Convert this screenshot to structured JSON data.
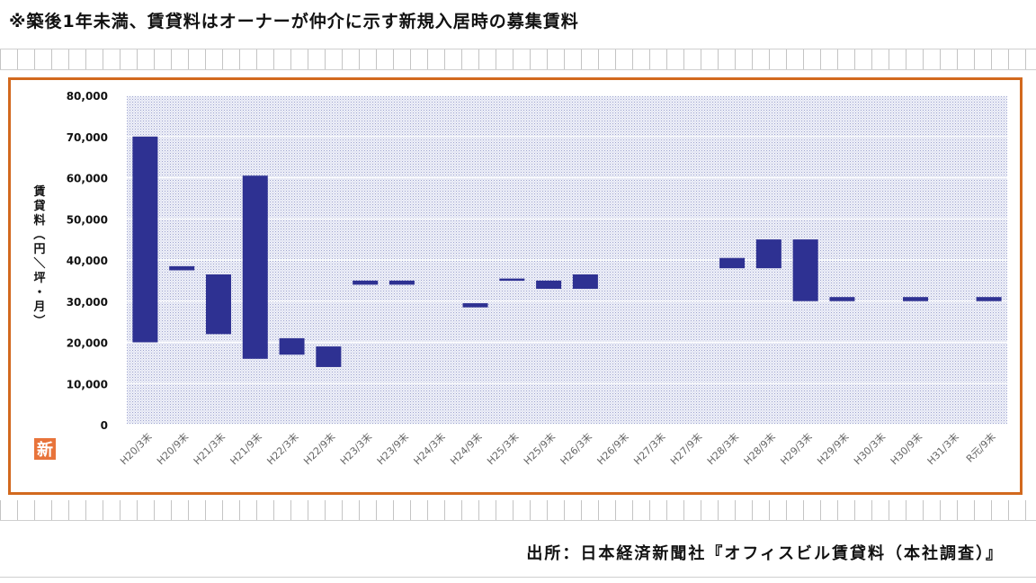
{
  "note": "※築後1年未満、賃貸料はオーナーが仲介に示す新規入居時の募集賃料",
  "source": "出所：日本経済新聞社『オフィスビル賃貸料（本社調査）』",
  "logo_text": "新",
  "colors": {
    "bar": "#2e3192",
    "frame": "#d2691e",
    "plot_dots": "#b4b8d8",
    "logo": "#e8743b"
  },
  "chart_data": {
    "type": "bar",
    "subtype": "floating-range",
    "ylabel": "賃貸料（円／坪・月）",
    "ylim": [
      0,
      80000
    ],
    "yticks": [
      "0",
      "10,000",
      "20,000",
      "30,000",
      "40,000",
      "50,000",
      "60,000",
      "70,000",
      "80,000"
    ],
    "ytick_values": [
      0,
      10000,
      20000,
      30000,
      40000,
      50000,
      60000,
      70000,
      80000
    ],
    "grid": true,
    "categories": [
      "H20/3末",
      "H20/9末",
      "H21/3末",
      "H21/9末",
      "H22/3末",
      "H22/9末",
      "H23/3末",
      "H23/9末",
      "H24/3末",
      "H24/9末",
      "H25/3末",
      "H25/9末",
      "H26/3末",
      "H26/9末",
      "H27/3末",
      "H27/9末",
      "H28/3末",
      "H28/9末",
      "H29/3末",
      "H29/9末",
      "H30/3末",
      "H30/9末",
      "H31/3末",
      "R元/9末"
    ],
    "ranges": [
      [
        20000,
        70000
      ],
      [
        37500,
        38500
      ],
      [
        22000,
        36500
      ],
      [
        16000,
        60500
      ],
      [
        17000,
        21000
      ],
      [
        14000,
        19000
      ],
      [
        34000,
        35000
      ],
      [
        34000,
        35000
      ],
      null,
      [
        28500,
        29500
      ],
      [
        35000,
        35500
      ],
      [
        33000,
        35000
      ],
      [
        33000,
        36500
      ],
      null,
      null,
      null,
      [
        38000,
        40500
      ],
      [
        38000,
        45000
      ],
      [
        30000,
        45000
      ],
      [
        30000,
        31000
      ],
      null,
      [
        30000,
        31000
      ],
      null,
      [
        30000,
        31000
      ]
    ]
  }
}
